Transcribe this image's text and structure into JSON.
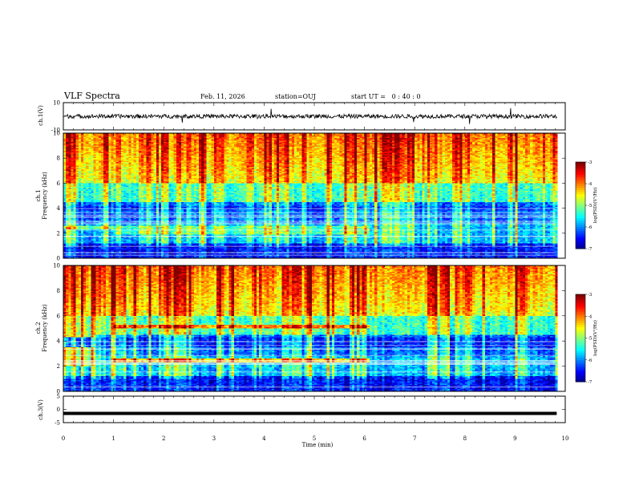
{
  "header": {
    "title": "VLF Spectra",
    "date": "Feb. 11, 2026",
    "station": "station=OUJ",
    "start_ut": "start UT =   0 : 40 : 0"
  },
  "colors": {
    "frame": "#000000",
    "ch3_trace": "#000000",
    "jet_low": "#00007f",
    "jet_high": "#7f0000"
  },
  "chart_data": [
    {
      "type": "line",
      "panel": "ch1-waveform",
      "ylabel": "ch.1(V)",
      "ylim": [
        -10,
        10
      ],
      "yticks": [
        "10",
        "-10"
      ],
      "xlim": [
        0,
        10
      ],
      "description_values": {
        "baseline": 0,
        "amplitude_typical": 1.5
      }
    },
    {
      "type": "heatmap",
      "panel": "ch1-spectrogram",
      "ylabel": "ch.1\nFrequency (kHz)",
      "ylim": [
        0,
        10
      ],
      "yticks": [
        "0",
        "2",
        "4",
        "6",
        "8",
        "10"
      ],
      "xlim": [
        0,
        10
      ],
      "data_end_min": 9.83,
      "colorbar": {
        "label": "log(PSD)(V²/Hz)",
        "range": [
          -7,
          -3
        ],
        "ticks": [
          "-3",
          "-4",
          "-5",
          "-6",
          "-7"
        ]
      },
      "bands": [
        {
          "f_low": 3.8,
          "f_high": 4.2,
          "level": -6.3,
          "t_start": 0,
          "t_end": 9.83
        },
        {
          "f_low": 2.3,
          "f_high": 2.6,
          "level": -5.0,
          "t_start": 0,
          "t_end": 1.0
        },
        {
          "f_low": 1.9,
          "f_high": 2.6,
          "level": -5.2,
          "t_start": 1.0,
          "t_end": 6.1
        }
      ]
    },
    {
      "type": "heatmap",
      "panel": "ch2-spectrogram",
      "ylabel": "ch.2\nFrequency (kHz)",
      "ylim": [
        0,
        10
      ],
      "yticks": [
        "0",
        "2",
        "4",
        "6",
        "8",
        "10"
      ],
      "xlim": [
        0,
        10
      ],
      "data_end_min": 9.83,
      "colorbar": {
        "label": "log(PSD)(V²/Hz)",
        "range": [
          -7,
          -3
        ],
        "ticks": [
          "-3",
          "-4",
          "-5",
          "-6",
          "-7"
        ]
      },
      "bands": [
        {
          "f_low": 5.0,
          "f_high": 5.3,
          "level": -4.1,
          "t_start": 1.0,
          "t_end": 6.1
        },
        {
          "f_low": 2.3,
          "f_high": 2.6,
          "level": -4.4,
          "t_start": 1.0,
          "t_end": 6.1
        },
        {
          "f_low": 3.5,
          "f_high": 4.3,
          "level": -6.4,
          "t_start": 0,
          "t_end": 9.83
        }
      ]
    },
    {
      "type": "line",
      "panel": "ch3-waveform",
      "ylabel": "ch.3(V)",
      "ylim": [
        -5,
        5
      ],
      "yticks": [
        "5",
        "0",
        "-5"
      ],
      "xlim": [
        0,
        10
      ],
      "xlabel": "Time (min)",
      "xticks": [
        "0",
        "1",
        "2",
        "3",
        "4",
        "5",
        "6",
        "7",
        "8",
        "9",
        "10"
      ],
      "value": -1.5
    }
  ]
}
